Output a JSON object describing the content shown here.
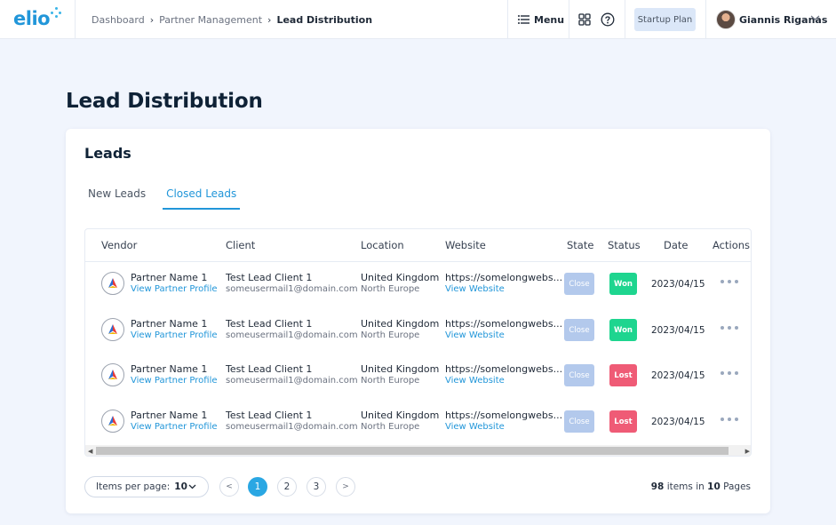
{
  "app": {
    "logo_text": "elio",
    "breadcrumb": [
      "Dashboard",
      "Partner Management",
      "Lead Distribution"
    ],
    "menu_label": "Menu",
    "plan_label": "Startup Plan",
    "user_name": "Giannis Riganas"
  },
  "page": {
    "title": "Lead Distribution"
  },
  "card": {
    "title": "Leads",
    "tabs": [
      {
        "label": "New Leads",
        "active": false
      },
      {
        "label": "Closed Leads",
        "active": true
      }
    ]
  },
  "table": {
    "columns": [
      "Vendor",
      "Client",
      "Location",
      "Website",
      "State",
      "Status",
      "Date",
      "Actions"
    ],
    "rows": [
      {
        "vendor": "Partner Name 1",
        "vendor_link": "View Partner Profile",
        "client": "Test Lead Client 1",
        "client_email": "someusermail1@domain.com",
        "location": "United Kingdom",
        "region": "North Europe",
        "website": "https://somelongwebs...",
        "website_link": "View Website",
        "state": "Close",
        "status": "Won",
        "date": "2023/04/15"
      },
      {
        "vendor": "Partner Name 1",
        "vendor_link": "View Partner Profile",
        "client": "Test Lead Client 1",
        "client_email": "someusermail1@domain.com",
        "location": "United Kingdom",
        "region": "North Europe",
        "website": "https://somelongwebs...",
        "website_link": "View Website",
        "state": "Close",
        "status": "Won",
        "date": "2023/04/15"
      },
      {
        "vendor": "Partner Name 1",
        "vendor_link": "View Partner Profile",
        "client": "Test Lead Client 1",
        "client_email": "someusermail1@domain.com",
        "location": "United Kingdom",
        "region": "North Europe",
        "website": "https://somelongwebs...",
        "website_link": "View Website",
        "state": "Close",
        "status": "Lost",
        "date": "2023/04/15"
      },
      {
        "vendor": "Partner Name 1",
        "vendor_link": "View Partner Profile",
        "client": "Test Lead Client 1",
        "client_email": "someusermail1@domain.com",
        "location": "United Kingdom",
        "region": "North Europe",
        "website": "https://somelongwebs...",
        "website_link": "View Website",
        "state": "Close",
        "status": "Lost",
        "date": "2023/04/15"
      }
    ]
  },
  "footer": {
    "items_per_page_label": "Items per page:",
    "items_per_page_value": "10",
    "pages": [
      "1",
      "2",
      "3"
    ],
    "current_page": "1",
    "prev_symbol": "<",
    "next_symbol": ">",
    "total_items": "98",
    "items_in_text": "items in",
    "total_pages": "10",
    "pages_text": "Pages"
  },
  "colors": {
    "accent": "#2196d9",
    "won": "#1ed58f",
    "lost": "#ef5b76",
    "state": "#b3c9ec"
  },
  "icons": {
    "menu": "hamburger-icon",
    "apps": "grid-icon",
    "help": "help-circle-icon",
    "user_menu": "chevron-down-icon",
    "actions": "more-dots-icon"
  }
}
